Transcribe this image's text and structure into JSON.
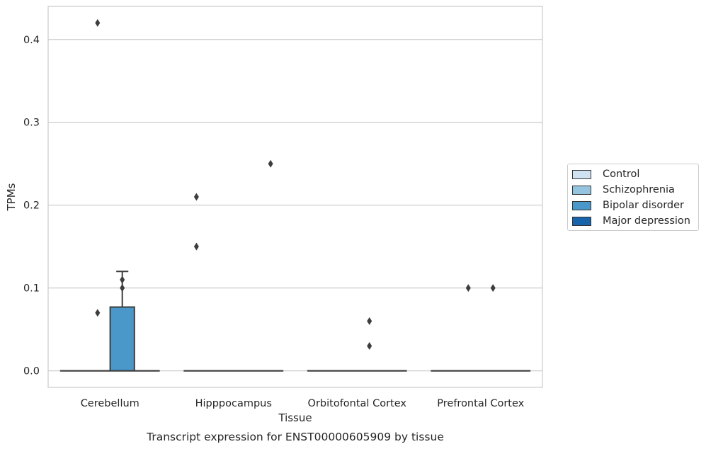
{
  "chart_data": {
    "type": "boxplot",
    "title": "Transcript expression for ENST00000605909 by tissue",
    "xlabel": "Tissue",
    "ylabel": "TPMs",
    "ylim": [
      -0.02,
      0.44
    ],
    "yticks": [
      "0.0",
      "0.1",
      "0.2",
      "0.3",
      "0.4"
    ],
    "categories": [
      "Cerebellum",
      "Hipppocampus",
      "Orbitofontal Cortex",
      "Prefrontal Cortex"
    ],
    "grid": true,
    "legend_position": "right",
    "series": [
      {
        "name": "Control",
        "color": "#d0e1f2",
        "boxes": [
          {
            "q1": 0,
            "median": 0,
            "q3": 0,
            "whislo": 0,
            "whishi": 0,
            "fliers": []
          },
          {
            "q1": 0,
            "median": 0,
            "q3": 0,
            "whislo": 0,
            "whishi": 0,
            "fliers": [
              0.15,
              0.21
            ]
          },
          {
            "q1": 0,
            "median": 0,
            "q3": 0,
            "whislo": 0,
            "whishi": 0,
            "fliers": []
          },
          {
            "q1": 0,
            "median": 0,
            "q3": 0,
            "whislo": 0,
            "whishi": 0,
            "fliers": []
          }
        ]
      },
      {
        "name": "Schizophrenia",
        "color": "#94c4df",
        "boxes": [
          {
            "q1": 0,
            "median": 0,
            "q3": 0,
            "whislo": 0,
            "whishi": 0,
            "fliers": [
              0.07,
              0.42
            ]
          },
          {
            "q1": 0,
            "median": 0,
            "q3": 0,
            "whislo": 0,
            "whishi": 0,
            "fliers": []
          },
          {
            "q1": 0,
            "median": 0,
            "q3": 0,
            "whislo": 0,
            "whishi": 0,
            "fliers": []
          },
          {
            "q1": 0,
            "median": 0,
            "q3": 0,
            "whislo": 0,
            "whishi": 0,
            "fliers": [
              0.1
            ]
          }
        ]
      },
      {
        "name": "Bipolar disorder",
        "color": "#4a98c9",
        "boxes": [
          {
            "q1": 0,
            "median": 0,
            "q3": 0.077,
            "whislo": 0,
            "whishi": 0.12,
            "fliers": [
              0.1,
              0.11
            ]
          },
          {
            "q1": 0,
            "median": 0,
            "q3": 0,
            "whislo": 0,
            "whishi": 0,
            "fliers": []
          },
          {
            "q1": 0,
            "median": 0,
            "q3": 0,
            "whislo": 0,
            "whishi": 0,
            "fliers": [
              0.03,
              0.06
            ]
          },
          {
            "q1": 0,
            "median": 0,
            "q3": 0,
            "whislo": 0,
            "whishi": 0,
            "fliers": [
              0.1
            ]
          }
        ]
      },
      {
        "name": "Major depression",
        "color": "#1764ab",
        "boxes": [
          {
            "q1": 0,
            "median": 0,
            "q3": 0,
            "whislo": 0,
            "whishi": 0,
            "fliers": []
          },
          {
            "q1": 0,
            "median": 0,
            "q3": 0,
            "whislo": 0,
            "whishi": 0,
            "fliers": [
              0.25
            ]
          },
          {
            "q1": 0,
            "median": 0,
            "q3": 0,
            "whislo": 0,
            "whishi": 0,
            "fliers": []
          },
          {
            "q1": 0,
            "median": 0,
            "q3": 0,
            "whislo": 0,
            "whishi": 0,
            "fliers": []
          }
        ]
      }
    ]
  }
}
